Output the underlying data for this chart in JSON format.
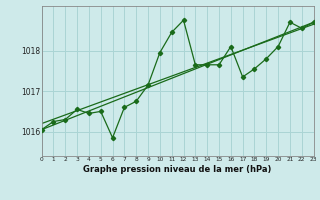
{
  "title": "Graphe pression niveau de la mer (hPa)",
  "bg_color": "#ceeaea",
  "grid_color": "#aad4d4",
  "line_color": "#1a6b1a",
  "x_min": 0,
  "x_max": 23,
  "y_min": 1015.4,
  "y_max": 1019.1,
  "yticks": [
    1016,
    1017,
    1018
  ],
  "xticks": [
    0,
    1,
    2,
    3,
    4,
    5,
    6,
    7,
    8,
    9,
    10,
    11,
    12,
    13,
    14,
    15,
    16,
    17,
    18,
    19,
    20,
    21,
    22,
    23
  ],
  "series1_x": [
    0,
    1,
    2,
    3,
    4,
    5,
    6,
    7,
    8,
    9,
    10,
    11,
    12,
    13,
    14,
    15,
    16,
    17,
    18,
    19,
    20,
    21,
    22,
    23
  ],
  "series1_y": [
    1016.05,
    1016.25,
    1016.3,
    1016.55,
    1016.45,
    1016.5,
    1015.85,
    1016.6,
    1016.75,
    1017.15,
    1017.95,
    1018.45,
    1018.75,
    1017.65,
    1017.65,
    1017.65,
    1018.1,
    1017.35,
    1017.55,
    1017.8,
    1018.1,
    1018.7,
    1018.55,
    1018.7
  ],
  "trend1_x": [
    0,
    23
  ],
  "trend1_y": [
    1016.05,
    1018.7
  ],
  "trend2_x": [
    0,
    23
  ],
  "trend2_y": [
    1016.2,
    1018.65
  ]
}
